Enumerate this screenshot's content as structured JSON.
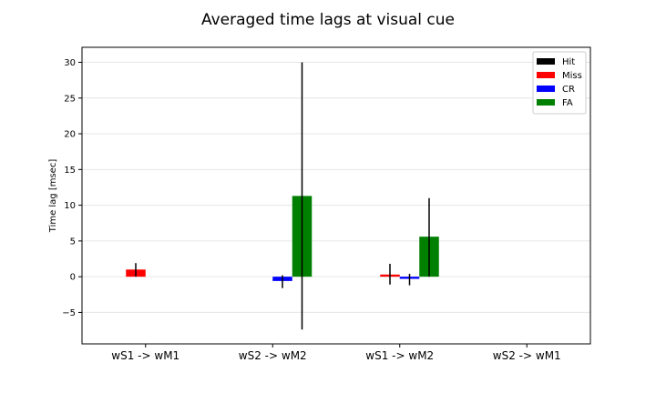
{
  "chart_data": {
    "type": "bar",
    "title": "Averaged time lags at visual cue",
    "xlabel": "",
    "ylabel": "Time lag [msec]",
    "ylim": [
      -9.4,
      32.1
    ],
    "yticks": [
      30,
      25,
      20,
      15,
      10,
      5,
      0,
      -5
    ],
    "ytick_labels": [
      "30",
      "25",
      "20",
      "15",
      "10",
      "5",
      "0",
      "−5"
    ],
    "categories": [
      "wS1 -> wM1",
      "wS2 -> wM2",
      "wS1 -> wM2",
      "wS2 -> wM1"
    ],
    "grid": "horizontal",
    "legend_position": "top-right",
    "series": [
      {
        "name": "Hit",
        "color": "#000000",
        "values": [
          null,
          null,
          null,
          null
        ],
        "err_low": [
          null,
          null,
          null,
          null
        ],
        "err_high": [
          null,
          null,
          null,
          null
        ]
      },
      {
        "name": "Miss",
        "color": "#ff0000",
        "values": [
          1.0,
          null,
          0.3,
          null
        ],
        "err_low": [
          0.0,
          null,
          -1.1,
          null
        ],
        "err_high": [
          1.9,
          null,
          1.8,
          null
        ]
      },
      {
        "name": "CR",
        "color": "#0000ff",
        "values": [
          null,
          -0.6,
          -0.3,
          null
        ],
        "err_low": [
          null,
          -1.6,
          -1.2,
          null
        ],
        "err_high": [
          null,
          0.2,
          0.4,
          null
        ]
      },
      {
        "name": "FA",
        "color": "#008000",
        "values": [
          null,
          11.3,
          5.6,
          null
        ],
        "err_low": [
          null,
          -7.4,
          0.0,
          null
        ],
        "err_high": [
          null,
          30.0,
          11.0,
          null
        ]
      }
    ]
  }
}
